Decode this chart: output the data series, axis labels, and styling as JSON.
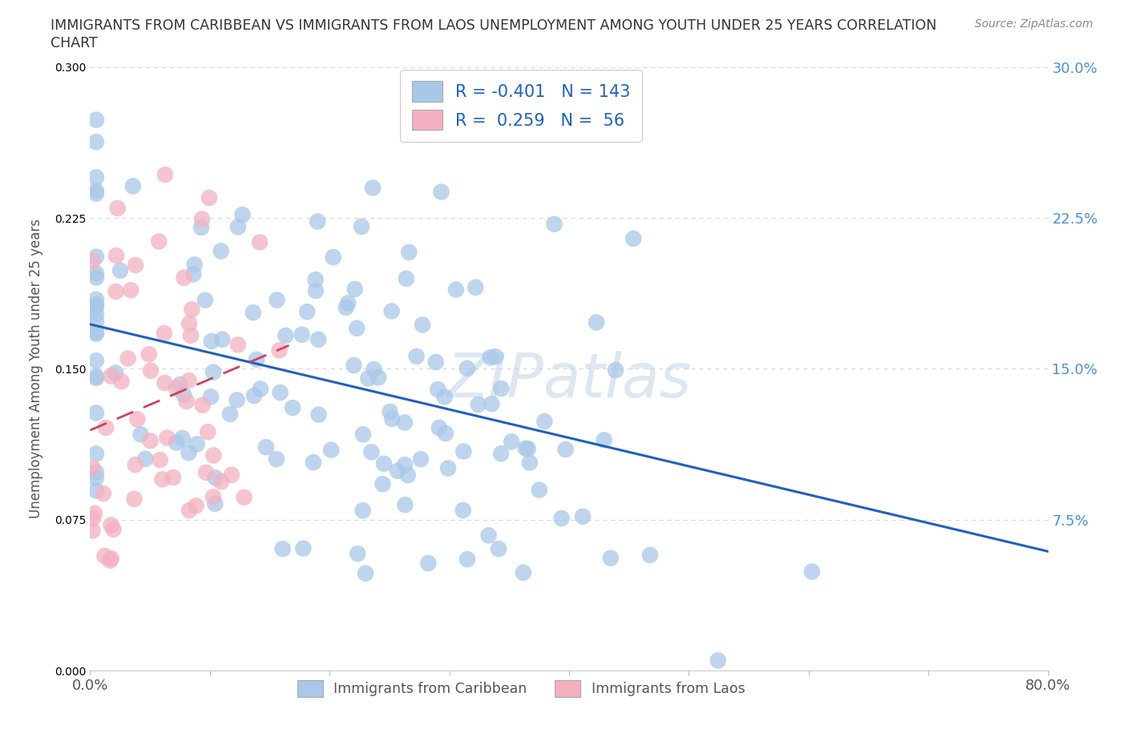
{
  "title_line1": "IMMIGRANTS FROM CARIBBEAN VS IMMIGRANTS FROM LAOS UNEMPLOYMENT AMONG YOUTH UNDER 25 YEARS CORRELATION",
  "title_line2": "CHART",
  "source": "Source: ZipAtlas.com",
  "ylabel": "Unemployment Among Youth under 25 years",
  "xlim": [
    0.0,
    0.8
  ],
  "ylim": [
    0.0,
    0.3
  ],
  "xticks": [
    0.0,
    0.1,
    0.2,
    0.3,
    0.4,
    0.5,
    0.6,
    0.7,
    0.8
  ],
  "yticks": [
    0.0,
    0.075,
    0.15,
    0.225,
    0.3
  ],
  "caribbean_color": "#a8c8e8",
  "laos_color": "#f4b0c0",
  "caribbean_line_color": "#2060c0",
  "laos_line_color": "#d04060",
  "legend_R1": "-0.401",
  "legend_N1": "143",
  "legend_R2": "0.259",
  "legend_N2": "56",
  "background_color": "#ffffff",
  "grid_color": "#d8d8d8",
  "caribbean_seed": 42,
  "laos_seed": 7,
  "N_caribbean": 143,
  "N_laos": 56,
  "R_caribbean": -0.401,
  "R_laos": 0.259
}
